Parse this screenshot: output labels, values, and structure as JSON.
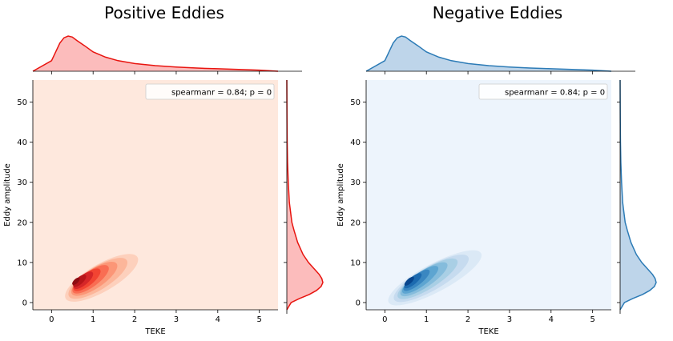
{
  "chart_data": [
    {
      "type": "kde-jointplot",
      "title": "Positive Eddies",
      "xlabel": "TEKE",
      "ylabel": "Eddy amplitude",
      "xlim": [
        -0.45,
        5.45
      ],
      "ylim": [
        -1.8,
        55.5
      ],
      "xticks": [
        0,
        1,
        2,
        3,
        4,
        5
      ],
      "yticks": [
        0,
        10,
        20,
        30,
        40,
        50
      ],
      "annotation": "spearmanr = 0.84; p = 0",
      "legend_position": "top-right",
      "colors": {
        "background": "#fee8dd",
        "marginal_line": "#e8140f",
        "marginal_fill": "#fcbcbc",
        "contour_levels": [
          "#fdd0bc",
          "#fcb69a",
          "#fb9677",
          "#f96d53",
          "#f24432",
          "#d62628",
          "#b81519",
          "#8e0b11"
        ]
      },
      "joint_density": {
        "center": [
          0.5,
          5.2
        ],
        "contours": [
          {
            "sx": 0.95,
            "sy": 6.2,
            "rotation_deg": -30
          },
          {
            "sx": 0.78,
            "sy": 5.2,
            "rotation_deg": -32
          },
          {
            "sx": 0.62,
            "sy": 4.3,
            "rotation_deg": -34
          },
          {
            "sx": 0.5,
            "sy": 3.5,
            "rotation_deg": -36
          },
          {
            "sx": 0.38,
            "sy": 2.8,
            "rotation_deg": -38
          },
          {
            "sx": 0.28,
            "sy": 2.2,
            "rotation_deg": -40
          },
          {
            "sx": 0.19,
            "sy": 1.6,
            "rotation_deg": -42
          },
          {
            "sx": 0.11,
            "sy": 1.0,
            "rotation_deg": -44
          }
        ]
      },
      "marginal_x": {
        "x": [
          -0.45,
          0.0,
          0.1,
          0.2,
          0.3,
          0.4,
          0.5,
          0.6,
          0.8,
          1.0,
          1.3,
          1.6,
          2.0,
          2.5,
          3.0,
          3.5,
          4.0,
          4.5,
          5.0,
          5.45
        ],
        "density": [
          0.0,
          0.3,
          0.55,
          0.8,
          0.95,
          1.0,
          0.97,
          0.88,
          0.72,
          0.55,
          0.4,
          0.3,
          0.22,
          0.16,
          0.12,
          0.09,
          0.07,
          0.05,
          0.03,
          0.0
        ]
      },
      "marginal_y": {
        "y": [
          -1.8,
          0,
          1,
          2,
          3,
          4,
          5,
          6,
          7,
          8,
          10,
          12,
          15,
          18,
          20,
          25,
          30,
          35,
          40,
          45,
          55.5
        ],
        "density": [
          0.0,
          0.12,
          0.35,
          0.62,
          0.82,
          0.95,
          1.0,
          0.97,
          0.9,
          0.8,
          0.6,
          0.45,
          0.3,
          0.2,
          0.14,
          0.07,
          0.04,
          0.02,
          0.01,
          0.005,
          0.0
        ]
      }
    },
    {
      "type": "kde-jointplot",
      "title": "Negative Eddies",
      "xlabel": "TEKE",
      "ylabel": "Eddy amplitude",
      "xlim": [
        -0.45,
        5.45
      ],
      "ylim": [
        -1.8,
        55.5
      ],
      "xticks": [
        0,
        1,
        2,
        3,
        4,
        5
      ],
      "yticks": [
        0,
        10,
        20,
        30,
        40,
        50
      ],
      "annotation": "spearmanr = 0.84; p = 0",
      "legend_position": "top-right",
      "colors": {
        "background": "#edf4fc",
        "marginal_line": "#2c7bb6",
        "marginal_fill": "#bed5ea",
        "contour_levels": [
          "#dbe9f6",
          "#c6dbef",
          "#a9cfe5",
          "#85bcdc",
          "#5da5d1",
          "#3a87c1",
          "#1c6aaf",
          "#08468e"
        ]
      },
      "joint_density": {
        "center": [
          0.5,
          5.2
        ],
        "contours": [
          {
            "sx": 1.2,
            "sy": 6.4,
            "rotation_deg": -28
          },
          {
            "sx": 0.98,
            "sy": 5.4,
            "rotation_deg": -30
          },
          {
            "sx": 0.8,
            "sy": 4.5,
            "rotation_deg": -32
          },
          {
            "sx": 0.64,
            "sy": 3.7,
            "rotation_deg": -34
          },
          {
            "sx": 0.5,
            "sy": 3.0,
            "rotation_deg": -36
          },
          {
            "sx": 0.37,
            "sy": 2.3,
            "rotation_deg": -38
          },
          {
            "sx": 0.25,
            "sy": 1.7,
            "rotation_deg": -40
          },
          {
            "sx": 0.14,
            "sy": 1.1,
            "rotation_deg": -42
          }
        ]
      },
      "marginal_x": {
        "x": [
          -0.45,
          0.0,
          0.1,
          0.2,
          0.3,
          0.4,
          0.5,
          0.6,
          0.8,
          1.0,
          1.3,
          1.6,
          2.0,
          2.5,
          3.0,
          3.5,
          4.0,
          4.5,
          5.0,
          5.45
        ],
        "density": [
          0.0,
          0.3,
          0.55,
          0.8,
          0.95,
          1.0,
          0.97,
          0.88,
          0.72,
          0.55,
          0.4,
          0.3,
          0.22,
          0.16,
          0.12,
          0.09,
          0.07,
          0.05,
          0.03,
          0.0
        ]
      },
      "marginal_y": {
        "y": [
          -1.8,
          0,
          1,
          2,
          3,
          4,
          5,
          6,
          7,
          8,
          10,
          12,
          15,
          18,
          20,
          25,
          30,
          35,
          40,
          45,
          55.5
        ],
        "density": [
          0.0,
          0.12,
          0.35,
          0.62,
          0.82,
          0.95,
          1.0,
          0.97,
          0.9,
          0.8,
          0.6,
          0.45,
          0.3,
          0.2,
          0.14,
          0.07,
          0.04,
          0.02,
          0.01,
          0.005,
          0.0
        ]
      }
    }
  ]
}
